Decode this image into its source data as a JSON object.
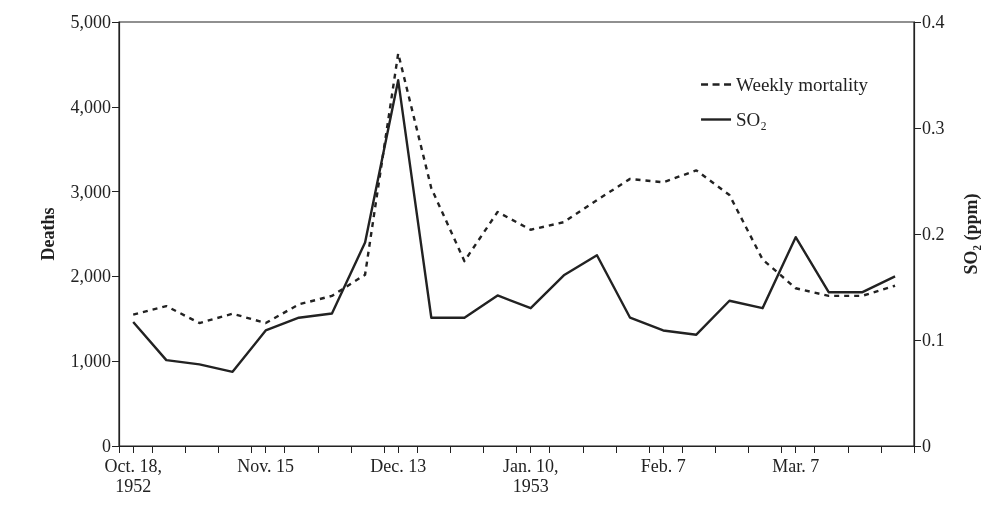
{
  "chart_data": {
    "type": "line",
    "x": [
      "1952-10-18",
      "1952-10-25",
      "1952-11-01",
      "1952-11-08",
      "1952-11-15",
      "1952-11-22",
      "1952-11-29",
      "1952-12-06",
      "1952-12-13",
      "1952-12-20",
      "1952-12-27",
      "1953-01-03",
      "1953-01-10",
      "1953-01-17",
      "1953-01-24",
      "1953-01-31",
      "1953-02-07",
      "1953-02-14",
      "1953-02-21",
      "1953-02-28",
      "1953-03-07",
      "1953-03-14",
      "1953-03-21",
      "1953-03-28"
    ],
    "series": [
      {
        "name": "Weekly mortality",
        "color": "#222222",
        "line_style": "dashed",
        "values": [
          1550,
          1650,
          1450,
          1560,
          1450,
          1670,
          1770,
          2020,
          4630,
          3040,
          2180,
          2760,
          2550,
          2640,
          2900,
          3150,
          3110,
          3250,
          2960,
          2200,
          1860,
          1770,
          1770,
          1890
        ]
      },
      {
        "name": "SO₂",
        "color": "#222222",
        "line_style": "solid",
        "axis": "y2",
        "values": [
          0.117,
          0.081,
          0.077,
          0.07,
          0.109,
          0.121,
          0.125,
          0.192,
          0.345,
          0.121,
          0.121,
          0.142,
          0.13,
          0.161,
          0.18,
          0.121,
          0.109,
          0.105,
          0.137,
          0.13,
          0.197,
          0.145,
          0.145,
          0.16
        ]
      }
    ],
    "ylabel": "Deaths",
    "y2label": "SO₂ (ppm)",
    "xlim": [
      "1952-10-15",
      "1953-04-01"
    ],
    "xticks": [
      {
        "value": "1952-10-18",
        "label": "Oct. 18,\n1952"
      },
      {
        "value": "1952-11-15",
        "label": "Nov. 15"
      },
      {
        "value": "1952-12-13",
        "label": "Dec. 13"
      },
      {
        "value": "1953-01-10",
        "label": "Jan. 10,\n1953"
      },
      {
        "value": "1953-02-07",
        "label": "Feb. 7"
      },
      {
        "value": "1953-03-07",
        "label": "Mar. 7"
      },
      {
        "value": "1952-10-15",
        "label": null
      },
      {
        "value": "1952-10-22",
        "label": null
      },
      {
        "value": "1952-10-29",
        "label": null
      },
      {
        "value": "1952-11-05",
        "label": null
      },
      {
        "value": "1952-11-12",
        "label": null
      },
      {
        "value": "1952-11-19",
        "label": null
      },
      {
        "value": "1952-11-26",
        "label": null
      },
      {
        "value": "1952-12-03",
        "label": null
      },
      {
        "value": "1952-12-10",
        "label": null
      },
      {
        "value": "1952-12-17",
        "label": null
      },
      {
        "value": "1952-12-24",
        "label": null
      },
      {
        "value": "1952-12-31",
        "label": null
      },
      {
        "value": "1953-01-07",
        "label": null
      },
      {
        "value": "1953-01-14",
        "label": null
      },
      {
        "value": "1953-01-21",
        "label": null
      },
      {
        "value": "1953-01-28",
        "label": null
      },
      {
        "value": "1953-02-04",
        "label": null
      },
      {
        "value": "1953-02-11",
        "label": null
      },
      {
        "value": "1953-02-18",
        "label": null
      },
      {
        "value": "1953-02-25",
        "label": null
      },
      {
        "value": "1953-03-04",
        "label": null
      },
      {
        "value": "1953-03-11",
        "label": null
      },
      {
        "value": "1953-03-18",
        "label": null
      },
      {
        "value": "1953-03-25",
        "label": null
      },
      {
        "value": "1953-04-01",
        "label": null
      }
    ],
    "ylim": [
      0,
      5000
    ],
    "yticks": [
      0,
      {
        "value": 1000,
        "label": "1,000"
      },
      {
        "value": 2000,
        "label": "2,000"
      },
      {
        "value": 3000,
        "label": "3,000"
      },
      {
        "value": 4000,
        "label": "4,000"
      },
      {
        "value": 5000,
        "label": "5,000"
      }
    ],
    "y2lim": [
      0,
      0.4
    ],
    "y2ticks": [
      0,
      0.1,
      0.2,
      0.3,
      0.4
    ],
    "legend": "top right",
    "marker": "none"
  }
}
